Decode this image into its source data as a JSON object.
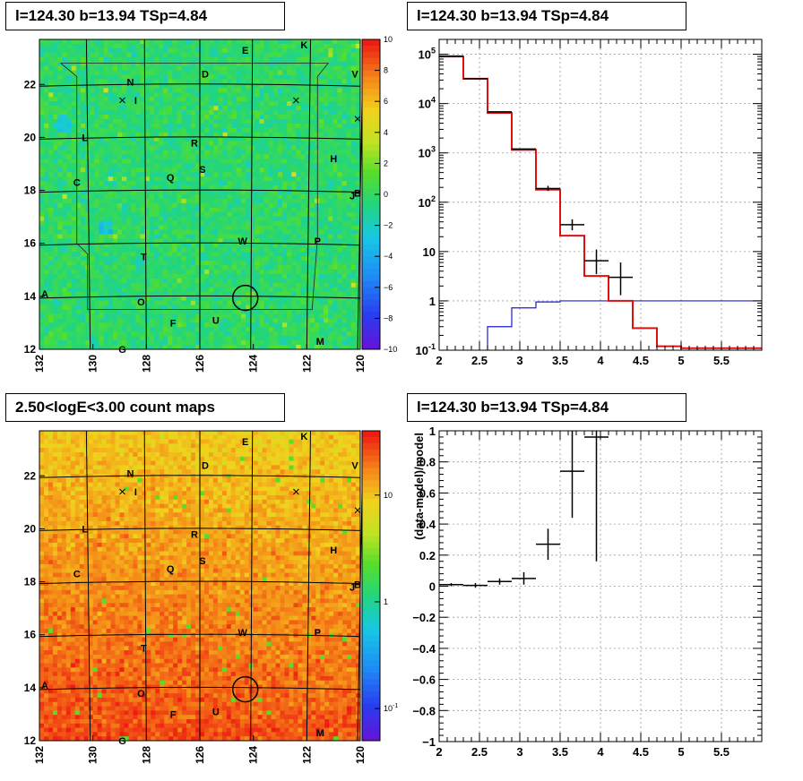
{
  "titles": {
    "top_left": "l=124.30 b=13.94 TSp=4.84",
    "top_right": "l=124.30 b=13.94 TSp=4.84",
    "bottom_left": "2.50<logE<3.00 count maps",
    "bottom_right": "l=124.30 b=13.94 TSp=4.84"
  },
  "chart_data": [
    {
      "id": "residual-map",
      "type": "heatmap",
      "xlim": [
        132,
        120
      ],
      "ylim": [
        12,
        23.7
      ],
      "x_ticks": [
        "132",
        "130",
        "128",
        "126",
        "124",
        "122",
        "120"
      ],
      "y_ticks": [
        "12",
        "14",
        "16",
        "18",
        "20",
        "22"
      ],
      "colorbar": {
        "range": [
          -10,
          10
        ],
        "ticks": [
          "10",
          "8",
          "6",
          "4",
          "2",
          "0",
          "−2",
          "−4",
          "−6",
          "−8",
          "−10"
        ]
      },
      "source_labels": [
        {
          "t": "K",
          "l": 122.1,
          "b": 23.5
        },
        {
          "t": "E",
          "l": 124.3,
          "b": 23.3
        },
        {
          "t": "V",
          "l": 120.2,
          "b": 22.4
        },
        {
          "t": "D",
          "l": 125.8,
          "b": 22.4
        },
        {
          "t": "N",
          "l": 128.6,
          "b": 22.1
        },
        {
          "t": "I",
          "l": 128.4,
          "b": 21.4
        },
        {
          "t": "L",
          "l": 130.3,
          "b": 20.0
        },
        {
          "t": "R",
          "l": 126.2,
          "b": 19.8
        },
        {
          "t": "H",
          "l": 121.0,
          "b": 19.2
        },
        {
          "t": "Q",
          "l": 127.1,
          "b": 18.5
        },
        {
          "t": "S",
          "l": 125.9,
          "b": 18.8
        },
        {
          "t": "C",
          "l": 130.6,
          "b": 18.3
        },
        {
          "t": "B",
          "l": 120.1,
          "b": 17.9
        },
        {
          "t": "J",
          "l": 120.3,
          "b": 17.8
        },
        {
          "t": "W",
          "l": 124.4,
          "b": 16.1
        },
        {
          "t": "P",
          "l": 121.6,
          "b": 16.1
        },
        {
          "t": "T",
          "l": 128.1,
          "b": 15.5
        },
        {
          "t": "A",
          "l": 131.8,
          "b": 14.1
        },
        {
          "t": "O",
          "l": 128.2,
          "b": 13.8
        },
        {
          "t": "F",
          "l": 127.0,
          "b": 13.0
        },
        {
          "t": "U",
          "l": 125.4,
          "b": 13.1
        },
        {
          "t": "M",
          "l": 121.5,
          "b": 12.3
        },
        {
          "t": "G",
          "l": 128.9,
          "b": 12.0
        }
      ],
      "marker": {
        "l": 124.3,
        "b": 13.94
      }
    },
    {
      "id": "spectrum",
      "type": "line",
      "xlim": [
        2,
        6
      ],
      "ylim": [
        0.1,
        200000
      ],
      "log_y": true,
      "x_ticks": [
        "2",
        "2.5",
        "3",
        "3.5",
        "4",
        "4.5",
        "5",
        "5.5"
      ],
      "y_ticks": [
        "10^-1",
        "1",
        "10",
        "10^2",
        "10^3",
        "10^4",
        "10^5"
      ],
      "model_total": [
        [
          2,
          90000
        ],
        [
          2.3,
          32000
        ],
        [
          2.6,
          6500
        ],
        [
          2.9,
          1150
        ],
        [
          3.2,
          180
        ],
        [
          3.5,
          21
        ],
        [
          3.8,
          3.2
        ],
        [
          4.1,
          1.0
        ],
        [
          4.4,
          0.28
        ],
        [
          4.7,
          0.12
        ],
        [
          5.0,
          0.11
        ],
        [
          6.0,
          0.11
        ]
      ],
      "model_source": [
        [
          2.6,
          0.3
        ],
        [
          2.9,
          0.72
        ],
        [
          3.2,
          0.95
        ],
        [
          3.5,
          1.0
        ],
        [
          6.0,
          1.0
        ]
      ],
      "data": [
        {
          "x": 2.15,
          "y": 92000,
          "xerr": 0.15
        },
        {
          "x": 2.45,
          "y": 32000,
          "xerr": 0.15
        },
        {
          "x": 2.75,
          "y": 6800,
          "xerr": 0.15
        },
        {
          "x": 3.05,
          "y": 1200,
          "xerr": 0.15
        },
        {
          "x": 3.35,
          "y": 190,
          "xerr": 0.15,
          "ylo": 170,
          "yhi": 215
        },
        {
          "x": 3.65,
          "y": 35,
          "xerr": 0.15,
          "ylo": 27,
          "yhi": 45
        },
        {
          "x": 3.95,
          "y": 6.5,
          "xerr": 0.15,
          "ylo": 3.5,
          "yhi": 11
        },
        {
          "x": 4.25,
          "y": 3.0,
          "xerr": 0.15,
          "ylo": 1.3,
          "yhi": 6
        }
      ]
    },
    {
      "id": "count-map",
      "type": "heatmap",
      "xlim": [
        132,
        120
      ],
      "ylim": [
        12,
        23.7
      ],
      "x_ticks": [
        "132",
        "130",
        "128",
        "126",
        "124",
        "122",
        "120"
      ],
      "y_ticks": [
        "12",
        "14",
        "16",
        "18",
        "20",
        "22"
      ],
      "colorbar": {
        "log": true,
        "range": [
          0.05,
          40
        ],
        "ticks": [
          "10",
          "1",
          "10^-1"
        ]
      }
    },
    {
      "id": "residual-fraction",
      "type": "scatter",
      "xlim": [
        2,
        6
      ],
      "ylim": [
        -1,
        1
      ],
      "ylabel": "(data-model)/model",
      "x_ticks": [
        "2",
        "2.5",
        "3",
        "3.5",
        "4",
        "4.5",
        "5",
        "5.5"
      ],
      "y_ticks": [
        "−1",
        "−0.8",
        "−0.6",
        "−0.4",
        "−0.2",
        "0",
        "0.2",
        "0.4",
        "0.6",
        "0.8",
        "1"
      ],
      "data": [
        {
          "x": 2.15,
          "y": 0.01,
          "xerr": 0.15,
          "yerr": 0.01
        },
        {
          "x": 2.45,
          "y": 0.005,
          "xerr": 0.15,
          "yerr": 0.015
        },
        {
          "x": 2.75,
          "y": 0.03,
          "xerr": 0.15,
          "yerr": 0.02
        },
        {
          "x": 3.05,
          "y": 0.05,
          "xerr": 0.15,
          "yerr": 0.04
        },
        {
          "x": 3.35,
          "y": 0.27,
          "xerr": 0.15,
          "yerr": 0.1
        },
        {
          "x": 3.65,
          "y": 0.74,
          "xerr": 0.15,
          "yerr": 0.3
        },
        {
          "x": 3.95,
          "y": 0.96,
          "xerr": 0.15,
          "yerr": 0.8
        }
      ]
    }
  ]
}
